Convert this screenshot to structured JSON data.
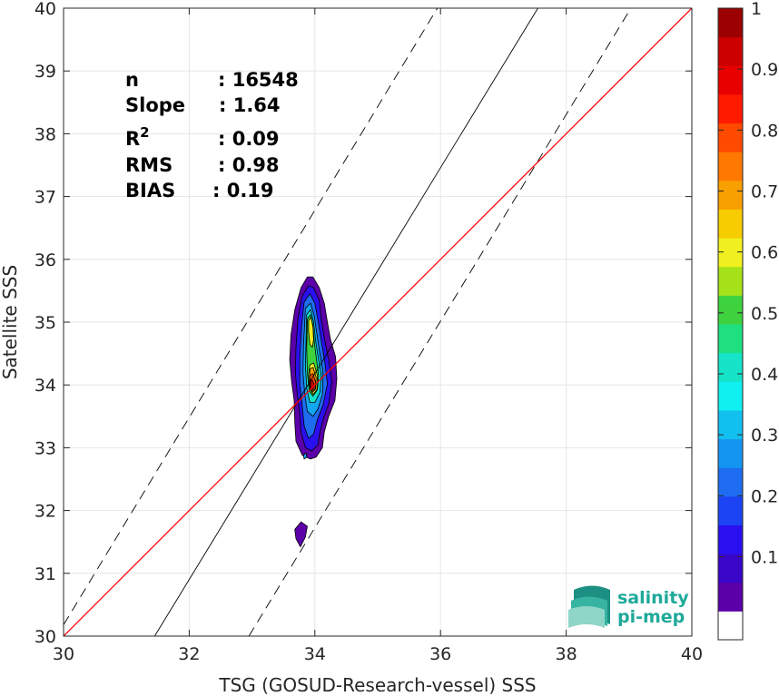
{
  "chart_data": {
    "type": "heatmap",
    "xlabel": "TSG (GOSUD-Research-vessel) SSS",
    "ylabel": "Satellite SSS",
    "xlim": [
      30,
      40
    ],
    "ylim": [
      30,
      40
    ],
    "xticks": [
      30,
      32,
      34,
      36,
      38,
      40
    ],
    "yticks": [
      30,
      31,
      32,
      33,
      34,
      35,
      36,
      37,
      38,
      39,
      40
    ],
    "grid": true,
    "stats": [
      {
        "label": "n",
        "value": ": 16548"
      },
      {
        "label": "Slope",
        "value": ": 1.64"
      },
      {
        "label": "R",
        "sup": "2",
        "value": ": 0.09"
      },
      {
        "label": "RMS",
        "value": ": 0.98"
      },
      {
        "label": "BIAS",
        "value": ": 0.19"
      }
    ],
    "lines": {
      "one_to_one": {
        "color": "#ff0000",
        "x": [
          30,
          40
        ],
        "y": [
          30,
          40
        ]
      },
      "fit": {
        "color": "#000000",
        "x": [
          31.45,
          37.55
        ],
        "y": [
          30,
          40
        ]
      },
      "upper_bound": {
        "color": "#000000",
        "style": "dashed",
        "x": [
          30,
          35.95
        ],
        "y": [
          30.18,
          40
        ]
      },
      "lower_bound": {
        "color": "#000000",
        "style": "dashed",
        "x": [
          32.95,
          39.0
        ],
        "y": [
          30,
          39.95
        ]
      }
    },
    "density_contours": [
      {
        "level": 0.05,
        "color": "#5b00a8",
        "points": [
          [
            33.78,
            35.55
          ],
          [
            33.88,
            35.72
          ],
          [
            33.97,
            35.72
          ],
          [
            34.07,
            35.55
          ],
          [
            34.15,
            35.3
          ],
          [
            34.2,
            35.0
          ],
          [
            34.25,
            34.72
          ],
          [
            34.33,
            34.45
          ],
          [
            34.35,
            34.1
          ],
          [
            34.32,
            33.75
          ],
          [
            34.22,
            33.5
          ],
          [
            34.15,
            33.25
          ],
          [
            34.12,
            33.0
          ],
          [
            34.02,
            32.85
          ],
          [
            33.93,
            32.82
          ],
          [
            33.8,
            32.88
          ],
          [
            33.7,
            33.1
          ],
          [
            33.68,
            33.4
          ],
          [
            33.67,
            33.75
          ],
          [
            33.63,
            34.05
          ],
          [
            33.6,
            34.4
          ],
          [
            33.62,
            34.8
          ],
          [
            33.68,
            35.2
          ]
        ]
      },
      {
        "level": 0.05,
        "color": "#5b00a8",
        "points": [
          [
            33.68,
            31.7
          ],
          [
            33.78,
            31.82
          ],
          [
            33.88,
            31.75
          ],
          [
            33.85,
            31.58
          ],
          [
            33.77,
            31.42
          ],
          [
            33.7,
            31.55
          ]
        ]
      },
      {
        "level": 0.15,
        "color": "#2a10f0",
        "points": [
          [
            33.8,
            35.42
          ],
          [
            33.9,
            35.58
          ],
          [
            33.98,
            35.55
          ],
          [
            34.07,
            35.35
          ],
          [
            34.1,
            35.05
          ],
          [
            34.15,
            34.75
          ],
          [
            34.22,
            34.4
          ],
          [
            34.27,
            34.05
          ],
          [
            34.22,
            33.7
          ],
          [
            34.13,
            33.45
          ],
          [
            34.07,
            33.2
          ],
          [
            34.05,
            33.05
          ],
          [
            33.95,
            32.95
          ],
          [
            33.85,
            33.0
          ],
          [
            33.78,
            33.25
          ],
          [
            33.76,
            33.55
          ],
          [
            33.72,
            33.85
          ],
          [
            33.69,
            34.2
          ],
          [
            33.7,
            34.6
          ],
          [
            33.73,
            35.05
          ]
        ]
      },
      {
        "level": 0.25,
        "color": "#1e6cf0",
        "points": [
          [
            33.83,
            35.32
          ],
          [
            33.92,
            35.45
          ],
          [
            34.0,
            35.3
          ],
          [
            34.05,
            35.02
          ],
          [
            34.1,
            34.72
          ],
          [
            34.16,
            34.35
          ],
          [
            34.2,
            34.02
          ],
          [
            34.13,
            33.68
          ],
          [
            34.04,
            33.45
          ],
          [
            33.98,
            33.22
          ],
          [
            33.9,
            33.15
          ],
          [
            33.83,
            33.35
          ],
          [
            33.8,
            33.65
          ],
          [
            33.76,
            34.0
          ],
          [
            33.76,
            34.45
          ],
          [
            33.79,
            34.95
          ]
        ]
      },
      {
        "level": 0.35,
        "color": "#12a8f0",
        "points": [
          [
            33.85,
            35.22
          ],
          [
            33.93,
            35.3
          ],
          [
            33.99,
            35.1
          ],
          [
            34.03,
            34.82
          ],
          [
            34.08,
            34.5
          ],
          [
            34.13,
            34.2
          ],
          [
            34.12,
            33.85
          ],
          [
            34.05,
            33.62
          ],
          [
            33.97,
            33.5
          ],
          [
            33.88,
            33.58
          ],
          [
            33.84,
            33.85
          ],
          [
            33.81,
            34.2
          ],
          [
            33.82,
            34.65
          ],
          [
            33.84,
            35.0
          ]
        ]
      },
      {
        "level": 0.45,
        "color": "#15e4c8",
        "points": [
          [
            33.87,
            35.12
          ],
          [
            33.93,
            35.2
          ],
          [
            33.98,
            35.0
          ],
          [
            34.01,
            34.72
          ],
          [
            34.05,
            34.45
          ],
          [
            34.1,
            34.15
          ],
          [
            34.08,
            33.88
          ],
          [
            34.0,
            33.72
          ],
          [
            33.92,
            33.72
          ],
          [
            33.87,
            33.95
          ],
          [
            33.85,
            34.3
          ],
          [
            33.86,
            34.7
          ]
        ]
      },
      {
        "level": 0.55,
        "color": "#3ed23e",
        "points": [
          [
            33.88,
            35.05
          ],
          [
            33.93,
            35.12
          ],
          [
            33.97,
            34.95
          ],
          [
            33.99,
            34.7
          ],
          [
            34.02,
            34.45
          ],
          [
            34.06,
            34.15
          ],
          [
            34.04,
            33.92
          ],
          [
            33.97,
            33.82
          ],
          [
            33.91,
            33.9
          ],
          [
            33.88,
            34.2
          ],
          [
            33.87,
            34.6
          ]
        ]
      },
      {
        "level": 0.65,
        "color": "#f0f020",
        "points": [
          [
            33.9,
            35.02
          ],
          [
            33.94,
            35.08
          ],
          [
            33.97,
            34.92
          ],
          [
            33.98,
            34.72
          ],
          [
            33.96,
            34.6
          ],
          [
            33.92,
            34.65
          ],
          [
            33.9,
            34.85
          ]
        ]
      },
      {
        "level": 0.65,
        "color": "#f0f020",
        "points": [
          [
            33.92,
            34.32
          ],
          [
            33.98,
            34.35
          ],
          [
            34.04,
            34.15
          ],
          [
            34.03,
            33.92
          ],
          [
            33.97,
            33.85
          ],
          [
            33.92,
            33.95
          ],
          [
            33.9,
            34.15
          ]
        ]
      },
      {
        "level": 0.75,
        "color": "#f7a000",
        "points": [
          [
            33.92,
            34.25
          ],
          [
            33.97,
            34.28
          ],
          [
            34.02,
            34.12
          ],
          [
            34.01,
            33.93
          ],
          [
            33.96,
            33.88
          ],
          [
            33.92,
            33.98
          ]
        ]
      },
      {
        "level": 0.85,
        "color": "#ff4a00",
        "points": [
          [
            33.92,
            34.15
          ],
          [
            33.97,
            34.18
          ],
          [
            34.01,
            34.05
          ],
          [
            34.0,
            33.93
          ],
          [
            33.95,
            33.9
          ],
          [
            33.92,
            34.0
          ]
        ]
      },
      {
        "level": 0.95,
        "color": "#cc0000",
        "points": [
          [
            33.93,
            34.06
          ],
          [
            33.96,
            34.08
          ],
          [
            33.99,
            34.0
          ],
          [
            33.97,
            33.93
          ],
          [
            33.93,
            33.94
          ]
        ]
      },
      {
        "level": 0.35,
        "color": "#12a8f0",
        "points": [
          [
            33.82,
            32.88
          ],
          [
            33.86,
            32.92
          ],
          [
            33.87,
            32.85
          ],
          [
            33.83,
            32.82
          ]
        ]
      }
    ],
    "colorbar": {
      "ticks": [
        "0.1",
        "0.2",
        "0.3",
        "0.4",
        "0.5",
        "0.6",
        "0.7",
        "0.8",
        "0.9",
        "1"
      ],
      "colors": [
        "#ffffff",
        "#5b00a8",
        "#3a06c8",
        "#2a10f0",
        "#1c44f4",
        "#1e6cf0",
        "#1496f0",
        "#12c0f0",
        "#10f0f0",
        "#15e4c8",
        "#1fe080",
        "#3ed23e",
        "#a6e21a",
        "#f0f020",
        "#f7cc00",
        "#f7a000",
        "#ff7800",
        "#ff4a00",
        "#ff1a00",
        "#e80000",
        "#cc0000",
        "#9c0000"
      ]
    }
  },
  "logo": {
    "line1": "salinity",
    "line2": "pi-mep"
  }
}
